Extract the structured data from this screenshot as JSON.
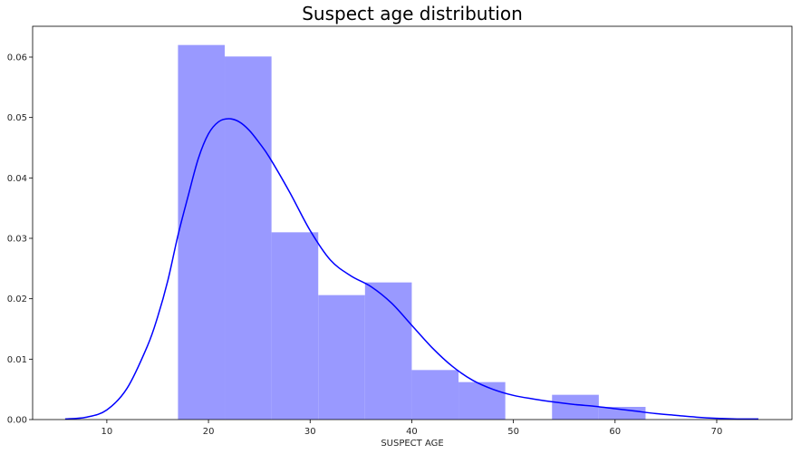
{
  "chart_data": {
    "type": "bar",
    "title": "Suspect age distribution",
    "xlabel": "SUSPECT AGE",
    "ylabel": "",
    "xlim": [
      2.7,
      77.4
    ],
    "ylim": [
      0,
      0.0651
    ],
    "grid": false,
    "x_ticks": [
      10,
      20,
      30,
      40,
      50,
      60,
      70
    ],
    "y_ticks": [
      0.0,
      0.01,
      0.02,
      0.03,
      0.04,
      0.05,
      0.06
    ],
    "y_tick_labels": [
      "0.00",
      "0.01",
      "0.02",
      "0.03",
      "0.04",
      "0.05",
      "0.06"
    ],
    "series": [
      {
        "kind": "histogram",
        "color": "#9999ff",
        "bins": [
          {
            "x0": 17.0,
            "x1": 21.6,
            "density": 0.062
          },
          {
            "x0": 21.6,
            "x1": 26.2,
            "density": 0.0601
          },
          {
            "x0": 26.2,
            "x1": 30.8,
            "density": 0.031
          },
          {
            "x0": 30.8,
            "x1": 35.4,
            "density": 0.0206
          },
          {
            "x0": 35.4,
            "x1": 40.0,
            "density": 0.0227
          },
          {
            "x0": 40.0,
            "x1": 44.6,
            "density": 0.0082
          },
          {
            "x0": 44.6,
            "x1": 49.2,
            "density": 0.0062
          },
          {
            "x0": 49.2,
            "x1": 53.8,
            "density": 0.0
          },
          {
            "x0": 53.8,
            "x1": 58.4,
            "density": 0.0041
          },
          {
            "x0": 58.4,
            "x1": 63.0,
            "density": 0.0021
          }
        ]
      },
      {
        "kind": "kde",
        "color": "#0000ff",
        "x": [
          5.9,
          8,
          10,
          12,
          14,
          15,
          16,
          17,
          18,
          19,
          20,
          21,
          22,
          23,
          24,
          25,
          26,
          28,
          30,
          32,
          34,
          36,
          38,
          40,
          42,
          44,
          46,
          48,
          50,
          52,
          54,
          56,
          58,
          60,
          62,
          64,
          66,
          68,
          70,
          72,
          74.1
        ],
        "y": [
          0.0001,
          0.0004,
          0.0016,
          0.0052,
          0.0122,
          0.017,
          0.023,
          0.0305,
          0.037,
          0.0432,
          0.0473,
          0.0493,
          0.0498,
          0.0493,
          0.0479,
          0.0458,
          0.0434,
          0.0376,
          0.0313,
          0.0264,
          0.0238,
          0.022,
          0.0193,
          0.0156,
          0.0119,
          0.0088,
          0.0065,
          0.005,
          0.004,
          0.0034,
          0.0029,
          0.0025,
          0.0022,
          0.0018,
          0.0014,
          0.001,
          0.0007,
          0.0004,
          0.0002,
          0.0001,
          0.0001
        ]
      }
    ]
  }
}
